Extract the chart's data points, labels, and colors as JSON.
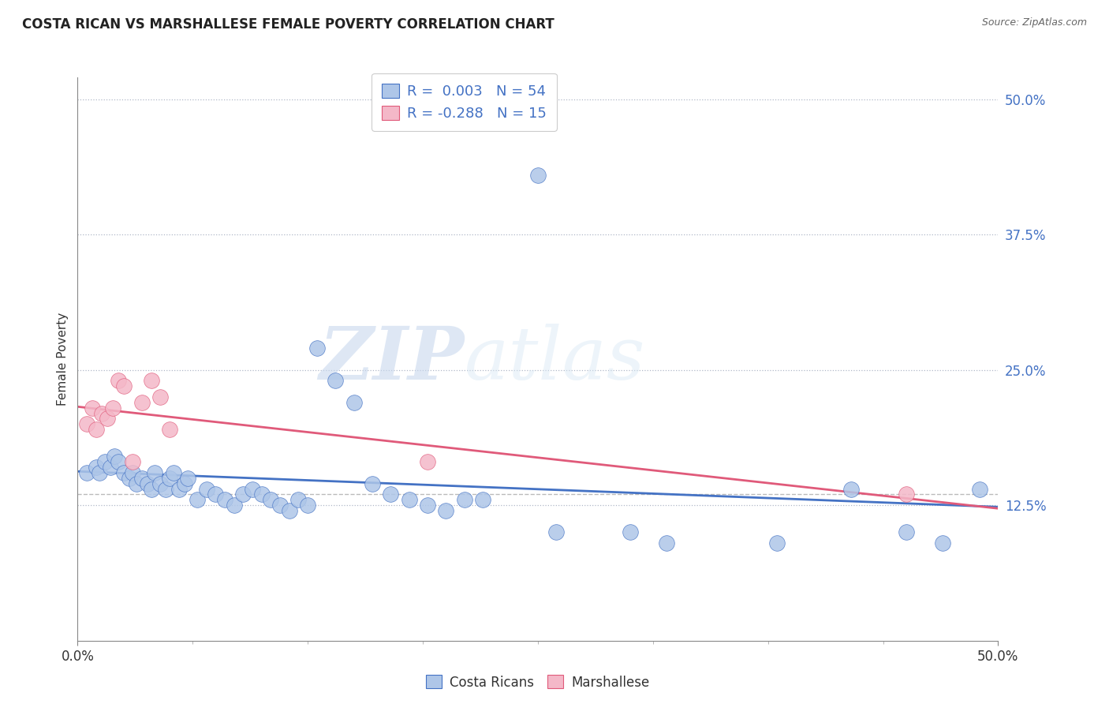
{
  "title": "COSTA RICAN VS MARSHALLESE FEMALE POVERTY CORRELATION CHART",
  "source": "Source: ZipAtlas.com",
  "ylabel": "Female Poverty",
  "ytick_labels": [
    "50.0%",
    "37.5%",
    "25.0%",
    "12.5%"
  ],
  "ytick_values": [
    0.5,
    0.375,
    0.25,
    0.125
  ],
  "xtick_labels": [
    "0.0%",
    "50.0%"
  ],
  "xtick_values": [
    0.0,
    0.5
  ],
  "xlim": [
    0.0,
    0.5
  ],
  "ylim": [
    0.0,
    0.52
  ],
  "cr_color": "#aec6e8",
  "cr_edge_color": "#4472c4",
  "marsh_color": "#f4b8c8",
  "marsh_edge_color": "#e05a7a",
  "cr_line_color": "#4472c4",
  "marsh_line_color": "#e05a7a",
  "background_color": "#ffffff",
  "grid_color": "#b0b8c8",
  "r_cr": 0.003,
  "n_cr": 54,
  "r_marsh": -0.288,
  "n_marsh": 15,
  "axis_label_color": "#4472c4",
  "watermark_zip": "ZIP",
  "watermark_atlas": "atlas",
  "legend_label_cr": "Costa Ricans",
  "legend_label_marsh": "Marshallese",
  "cr_scatter_x": [
    0.005,
    0.01,
    0.012,
    0.015,
    0.018,
    0.02,
    0.022,
    0.025,
    0.028,
    0.03,
    0.032,
    0.035,
    0.038,
    0.04,
    0.042,
    0.045,
    0.048,
    0.05,
    0.052,
    0.055,
    0.058,
    0.06,
    0.065,
    0.07,
    0.075,
    0.08,
    0.085,
    0.09,
    0.095,
    0.1,
    0.105,
    0.11,
    0.115,
    0.12,
    0.125,
    0.13,
    0.14,
    0.15,
    0.16,
    0.17,
    0.18,
    0.19,
    0.2,
    0.21,
    0.22,
    0.25,
    0.26,
    0.3,
    0.32,
    0.38,
    0.42,
    0.45,
    0.47,
    0.49
  ],
  "cr_scatter_y": [
    0.155,
    0.16,
    0.155,
    0.165,
    0.16,
    0.17,
    0.165,
    0.155,
    0.15,
    0.155,
    0.145,
    0.15,
    0.145,
    0.14,
    0.155,
    0.145,
    0.14,
    0.15,
    0.155,
    0.14,
    0.145,
    0.15,
    0.13,
    0.14,
    0.135,
    0.13,
    0.125,
    0.135,
    0.14,
    0.135,
    0.13,
    0.125,
    0.12,
    0.13,
    0.125,
    0.27,
    0.24,
    0.22,
    0.145,
    0.135,
    0.13,
    0.125,
    0.12,
    0.13,
    0.13,
    0.43,
    0.1,
    0.1,
    0.09,
    0.09,
    0.14,
    0.1,
    0.09,
    0.14
  ],
  "marsh_scatter_x": [
    0.005,
    0.008,
    0.01,
    0.013,
    0.016,
    0.019,
    0.022,
    0.025,
    0.03,
    0.035,
    0.04,
    0.045,
    0.05,
    0.19,
    0.45
  ],
  "marsh_scatter_y": [
    0.2,
    0.215,
    0.195,
    0.21,
    0.205,
    0.215,
    0.24,
    0.235,
    0.165,
    0.22,
    0.24,
    0.225,
    0.195,
    0.165,
    0.135
  ]
}
